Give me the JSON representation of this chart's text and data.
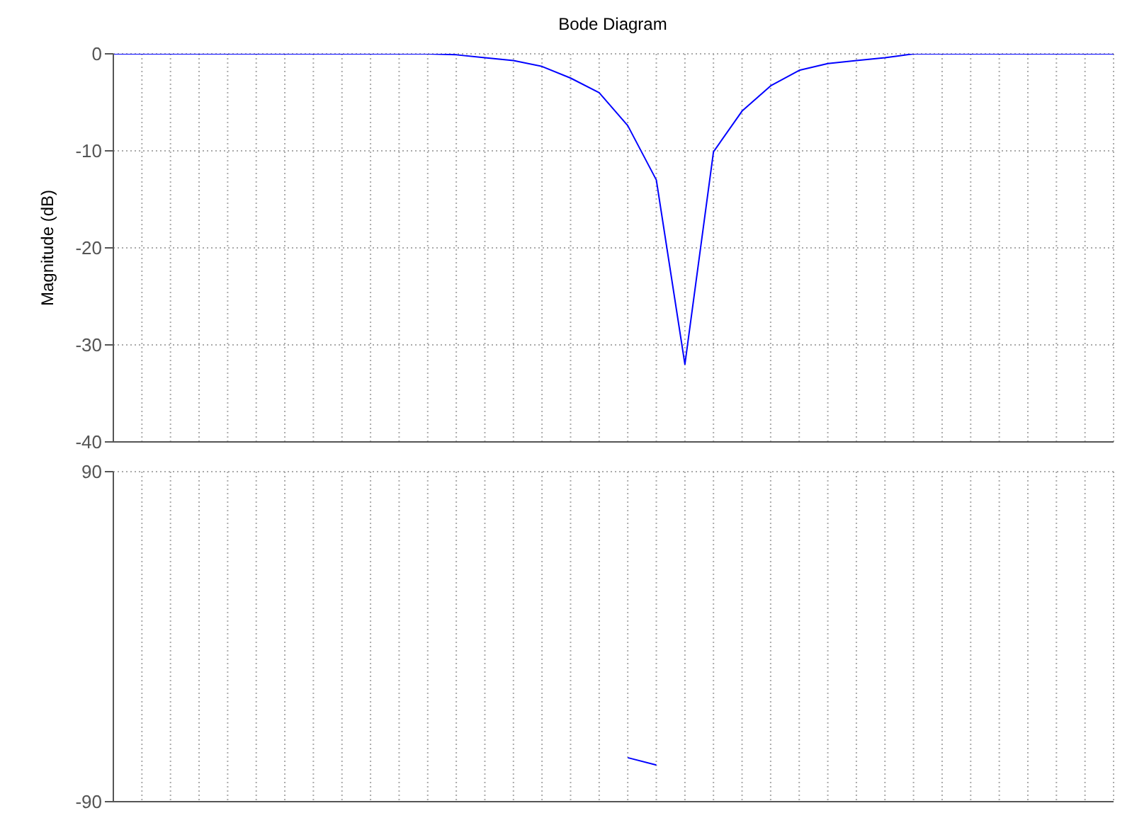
{
  "chart_data": [
    {
      "type": "line",
      "title": "Bode Diagram",
      "ylabel": "Magnitude (dB)",
      "categories": [
        null,
        null,
        null,
        null,
        null,
        null,
        null,
        null,
        null,
        null,
        null,
        null,
        null,
        null,
        null,
        null,
        null,
        null,
        null,
        null,
        null,
        null,
        null,
        null,
        null,
        null,
        null,
        null,
        null,
        null,
        null,
        null,
        null,
        null,
        null,
        null
      ],
      "series": [
        {
          "color": "#0000ff",
          "values": [
            0,
            0,
            0,
            0,
            0,
            0,
            0,
            0,
            0,
            0,
            0,
            0,
            -0.1,
            -0.4,
            -0.7,
            -1.3,
            -2.5,
            -4.0,
            -7.4,
            -13,
            -32,
            -10.1,
            -5.9,
            -3.3,
            -1.7,
            -1.0,
            -0.7,
            -0.4,
            0,
            0,
            0,
            0,
            0,
            0,
            0,
            0
          ]
        }
      ],
      "ylim": [
        -40,
        0
      ],
      "yticks": [
        -40,
        -30,
        -20,
        -10,
        0
      ],
      "grid": true,
      "tick_labels": "y"
    },
    {
      "type": "line",
      "categories": [
        null,
        null,
        null,
        null,
        null,
        null,
        null,
        null,
        null,
        null,
        null,
        null,
        null,
        null,
        null,
        null,
        null,
        null,
        null,
        null,
        null,
        null,
        null,
        null,
        null,
        null,
        null,
        null,
        null,
        null,
        null,
        null,
        null,
        null,
        null,
        null
      ],
      "series": [
        {
          "color": "#0000ff",
          "values": [
            null,
            null,
            null,
            null,
            null,
            null,
            null,
            null,
            null,
            null,
            null,
            null,
            null,
            null,
            null,
            null,
            null,
            null,
            -66,
            -70,
            null,
            null,
            null,
            null,
            null,
            null,
            null,
            null,
            null,
            null,
            null,
            null,
            null,
            null,
            null,
            null
          ]
        }
      ],
      "ylim": [
        -90,
        90
      ],
      "yticks": [
        -90,
        90
      ],
      "grid": true,
      "tick_labels": "y"
    }
  ]
}
